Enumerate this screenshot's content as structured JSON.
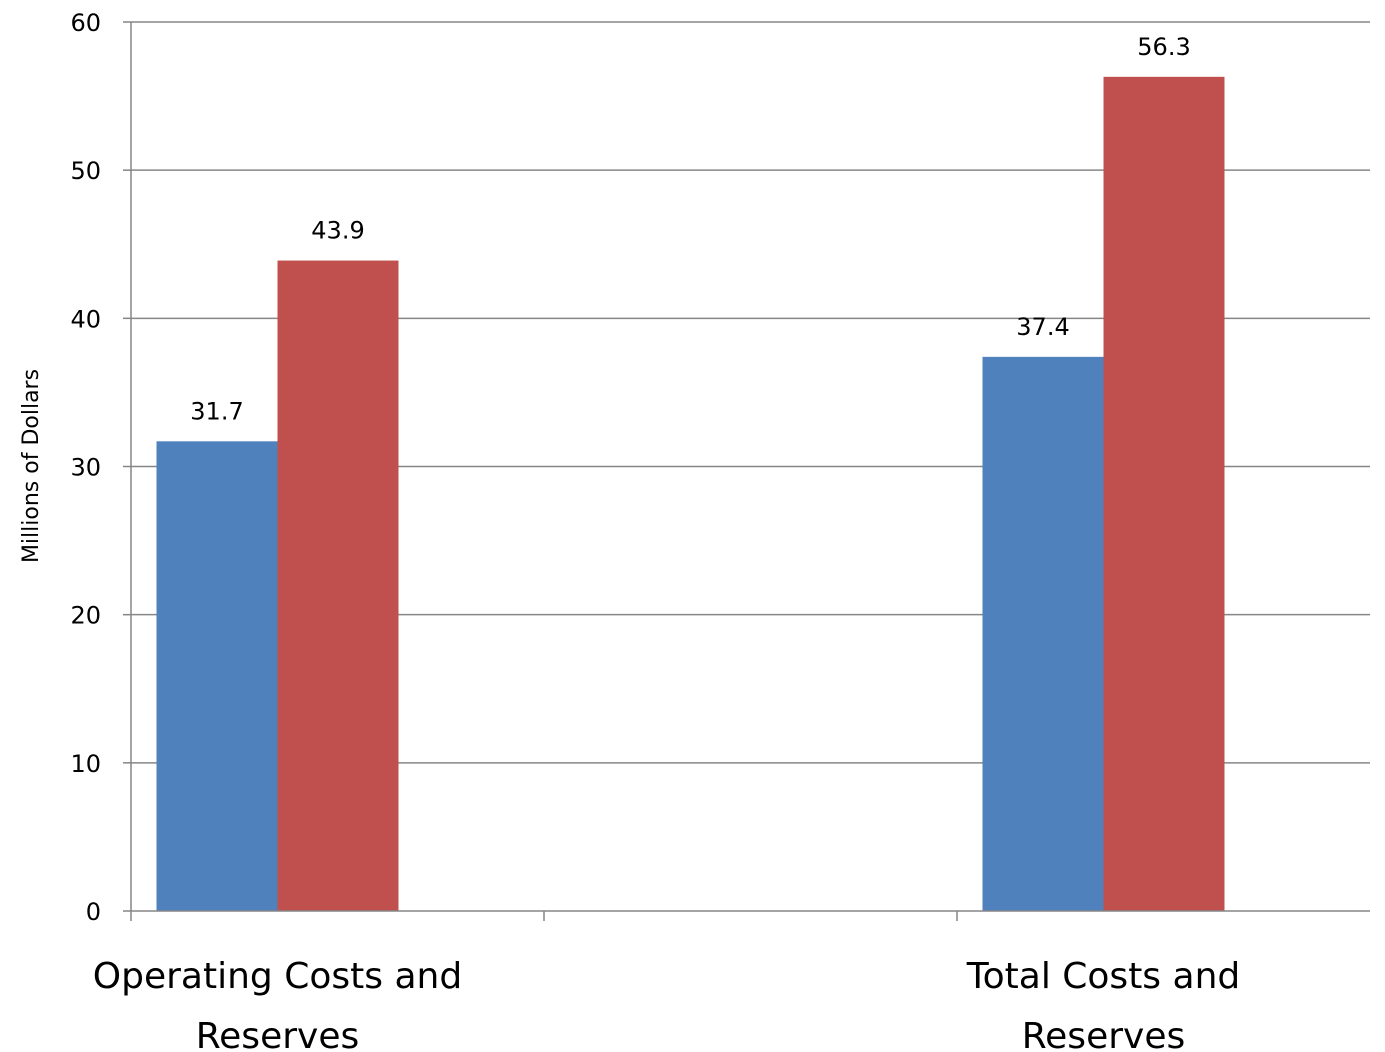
{
  "chart_data": {
    "type": "bar",
    "title": "",
    "xlabel": "",
    "ylabel": "Millions of Dollars",
    "ylim": [
      0,
      60
    ],
    "yticks": [
      0,
      10,
      20,
      30,
      40,
      50,
      60
    ],
    "grid": true,
    "legend": "none",
    "categories": [
      [
        "Operating Costs and",
        "Reserves"
      ],
      [
        "Total Costs and",
        "Reserves"
      ]
    ],
    "series": [
      {
        "values": [
          31.7,
          37.4
        ],
        "value_labels": [
          "31.7",
          "37.4"
        ],
        "color": "#4F81BD"
      },
      {
        "values": [
          43.9,
          56.3
        ],
        "value_labels": [
          "43.9",
          "56.3"
        ],
        "color": "#C0504D"
      }
    ]
  }
}
